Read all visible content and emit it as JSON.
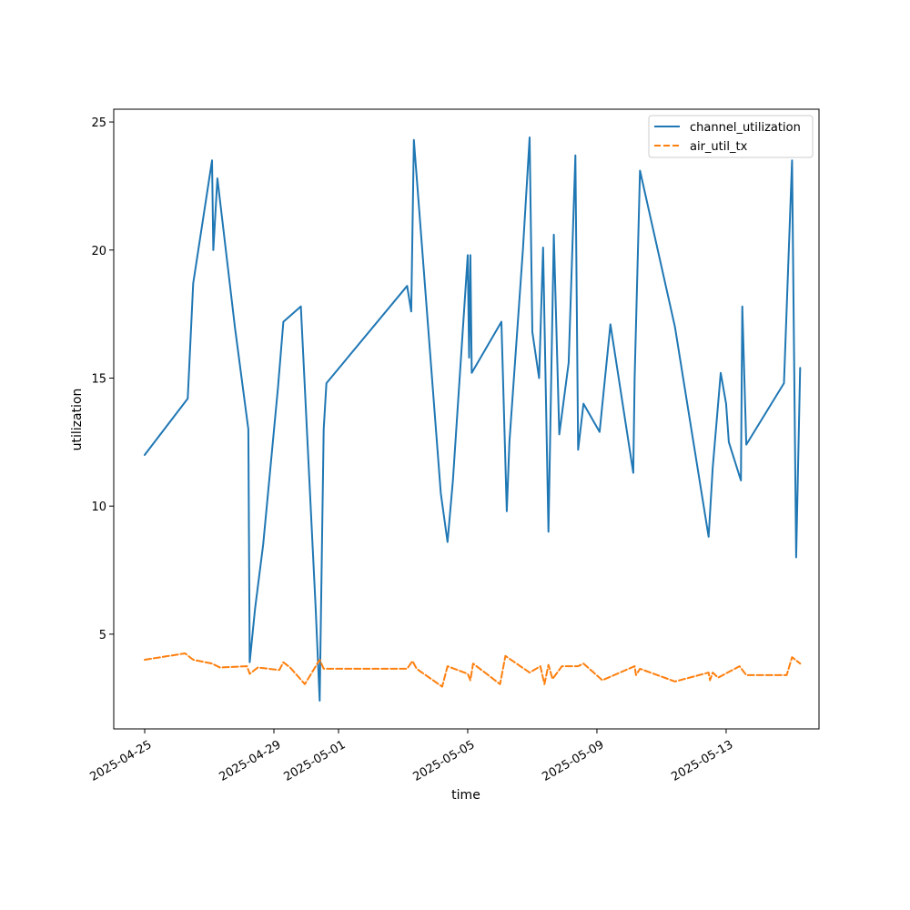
{
  "chart_data": {
    "type": "line",
    "title": "",
    "xlabel": "time",
    "ylabel": "utilization",
    "x_is_date": true,
    "xlim": [
      "2025-04-24T01:00",
      "2025-05-15T21:00"
    ],
    "ylim": [
      1.3,
      25.5
    ],
    "xticks": [
      "2025-04-25",
      "2025-04-29",
      "2025-05-01",
      "2025-05-05",
      "2025-05-09",
      "2025-05-13"
    ],
    "yticks": [
      5,
      10,
      15,
      20,
      25
    ],
    "grid": false,
    "legend": "top-right",
    "series": [
      {
        "name": "channel_utilization",
        "color": "#1f77b4",
        "style": "solid",
        "points": [
          [
            "2025-04-25T00:00",
            12.0
          ],
          [
            "2025-04-26T08:00",
            14.2
          ],
          [
            "2025-04-26T12:00",
            18.7
          ],
          [
            "2025-04-27T02:00",
            23.5
          ],
          [
            "2025-04-27T03:00",
            20.0
          ],
          [
            "2025-04-27T06:00",
            22.8
          ],
          [
            "2025-04-27T19:00",
            17.0
          ],
          [
            "2025-04-28T05:00",
            13.0
          ],
          [
            "2025-04-28T06:00",
            3.9
          ],
          [
            "2025-04-28T10:00",
            6.0
          ],
          [
            "2025-04-28T16:00",
            8.5
          ],
          [
            "2025-04-29T03:00",
            14.6
          ],
          [
            "2025-04-29T07:00",
            17.2
          ],
          [
            "2025-04-29T20:00",
            17.8
          ],
          [
            "2025-04-30T07:00",
            6.0
          ],
          [
            "2025-04-30T10:00",
            2.4
          ],
          [
            "2025-04-30T13:00",
            13.0
          ],
          [
            "2025-04-30T15:00",
            14.8
          ],
          [
            "2025-05-03T03:00",
            18.6
          ],
          [
            "2025-05-03T06:00",
            17.6
          ],
          [
            "2025-05-03T08:00",
            24.3
          ],
          [
            "2025-05-04T04:00",
            10.5
          ],
          [
            "2025-05-04T09:00",
            8.6
          ],
          [
            "2025-05-04T13:00",
            11.0
          ],
          [
            "2025-05-05T00:00",
            19.8
          ],
          [
            "2025-05-05T01:00",
            15.8
          ],
          [
            "2025-05-05T02:00",
            19.8
          ],
          [
            "2025-05-05T03:00",
            15.2
          ],
          [
            "2025-05-06T01:00",
            17.2
          ],
          [
            "2025-05-06T05:00",
            9.8
          ],
          [
            "2025-05-06T07:00",
            12.5
          ],
          [
            "2025-05-06T17:00",
            20.0
          ],
          [
            "2025-05-06T22:00",
            24.4
          ],
          [
            "2025-05-07T00:00",
            16.8
          ],
          [
            "2025-05-07T05:00",
            15.0
          ],
          [
            "2025-05-07T08:00",
            20.1
          ],
          [
            "2025-05-07T12:00",
            9.0
          ],
          [
            "2025-05-07T16:00",
            20.6
          ],
          [
            "2025-05-07T20:00",
            12.8
          ],
          [
            "2025-05-08T03:00",
            15.6
          ],
          [
            "2025-05-08T08:00",
            23.7
          ],
          [
            "2025-05-08T10:00",
            12.2
          ],
          [
            "2025-05-08T14:00",
            14.0
          ],
          [
            "2025-05-09T02:00",
            12.9
          ],
          [
            "2025-05-09T10:00",
            17.1
          ],
          [
            "2025-05-10T03:00",
            11.3
          ],
          [
            "2025-05-10T04:00",
            15.0
          ],
          [
            "2025-05-10T08:00",
            23.1
          ],
          [
            "2025-05-11T10:00",
            17.0
          ],
          [
            "2025-05-12T11:00",
            8.8
          ],
          [
            "2025-05-12T14:00",
            11.5
          ],
          [
            "2025-05-12T20:00",
            15.2
          ],
          [
            "2025-05-13T00:00",
            14.0
          ],
          [
            "2025-05-13T02:00",
            12.5
          ],
          [
            "2025-05-13T11:00",
            11.0
          ],
          [
            "2025-05-13T12:00",
            17.8
          ],
          [
            "2025-05-13T15:00",
            12.4
          ],
          [
            "2025-05-14T19:00",
            14.8
          ],
          [
            "2025-05-15T01:00",
            23.5
          ],
          [
            "2025-05-15T04:00",
            8.0
          ],
          [
            "2025-05-15T07:00",
            15.4
          ]
        ]
      },
      {
        "name": "air_util_tx",
        "color": "#ff7f0e",
        "style": "dashed",
        "points": [
          [
            "2025-04-25T00:00",
            4.0
          ],
          [
            "2025-04-26T06:00",
            4.25
          ],
          [
            "2025-04-26T12:00",
            4.0
          ],
          [
            "2025-04-27T02:00",
            3.85
          ],
          [
            "2025-04-27T08:00",
            3.7
          ],
          [
            "2025-04-28T04:00",
            3.75
          ],
          [
            "2025-04-28T06:00",
            3.45
          ],
          [
            "2025-04-28T12:00",
            3.7
          ],
          [
            "2025-04-29T04:00",
            3.6
          ],
          [
            "2025-04-29T07:00",
            3.9
          ],
          [
            "2025-04-29T12:00",
            3.7
          ],
          [
            "2025-04-29T23:00",
            3.05
          ],
          [
            "2025-04-30T10:00",
            4.0
          ],
          [
            "2025-04-30T13:00",
            3.65
          ],
          [
            "2025-05-03T03:00",
            3.65
          ],
          [
            "2025-05-03T07:00",
            3.95
          ],
          [
            "2025-05-03T10:00",
            3.65
          ],
          [
            "2025-05-04T05:00",
            2.95
          ],
          [
            "2025-05-04T09:00",
            3.75
          ],
          [
            "2025-05-05T00:00",
            3.45
          ],
          [
            "2025-05-05T02:00",
            3.2
          ],
          [
            "2025-05-05T04:00",
            3.85
          ],
          [
            "2025-05-06T00:00",
            3.05
          ],
          [
            "2025-05-06T04:00",
            4.15
          ],
          [
            "2025-05-06T22:00",
            3.5
          ],
          [
            "2025-05-07T06:00",
            3.75
          ],
          [
            "2025-05-07T09:00",
            3.05
          ],
          [
            "2025-05-07T12:00",
            3.8
          ],
          [
            "2025-05-07T15:00",
            3.25
          ],
          [
            "2025-05-07T22:00",
            3.75
          ],
          [
            "2025-05-08T10:00",
            3.75
          ],
          [
            "2025-05-08T14:00",
            3.85
          ],
          [
            "2025-05-09T04:00",
            3.2
          ],
          [
            "2025-05-10T04:00",
            3.75
          ],
          [
            "2025-05-10T05:00",
            3.4
          ],
          [
            "2025-05-10T08:00",
            3.65
          ],
          [
            "2025-05-11T10:00",
            3.15
          ],
          [
            "2025-05-12T11:00",
            3.5
          ],
          [
            "2025-05-12T12:00",
            3.2
          ],
          [
            "2025-05-12T14:00",
            3.5
          ],
          [
            "2025-05-12T18:00",
            3.3
          ],
          [
            "2025-05-13T10:00",
            3.75
          ],
          [
            "2025-05-13T15:00",
            3.4
          ],
          [
            "2025-05-14T21:00",
            3.4
          ],
          [
            "2025-05-15T01:00",
            4.1
          ],
          [
            "2025-05-15T07:00",
            3.85
          ]
        ]
      }
    ]
  }
}
